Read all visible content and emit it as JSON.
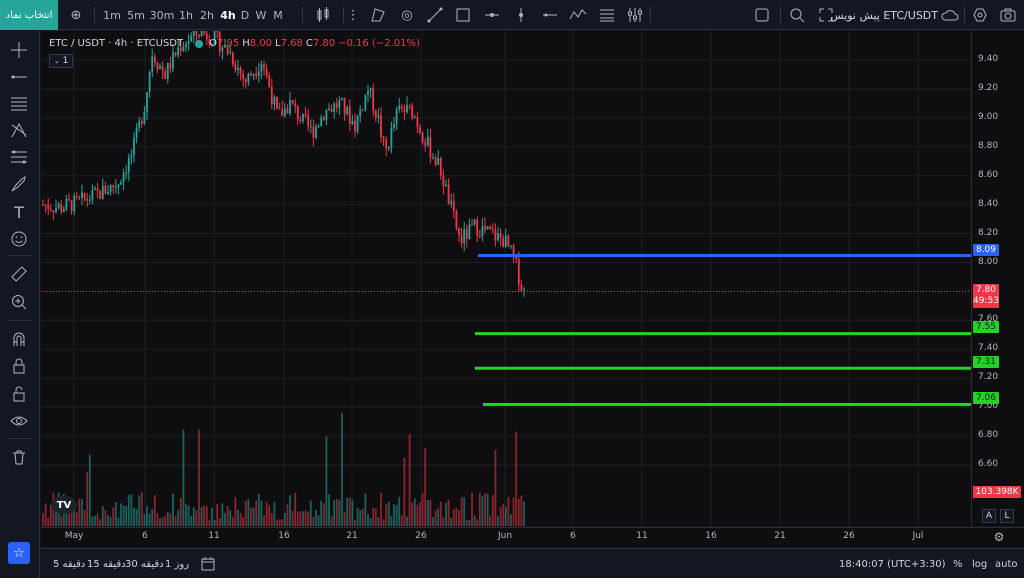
{
  "topbar": {
    "symbol_button": "انتخاب نماد",
    "intervals": [
      "1m",
      "5m",
      "30m",
      "1h",
      "2h",
      "4h",
      "D",
      "W",
      "M"
    ],
    "active_interval": "4h",
    "symbol_name": "پیش نویس ETC/USDT"
  },
  "legend": {
    "title": "ETC / USDT · 4h · ETCUSDT",
    "o_label": "O",
    "o_value": "7.95",
    "h_label": "H",
    "h_value": "8.00",
    "l_label": "L",
    "l_value": "7.68",
    "c_label": "C",
    "c_value": "7.80",
    "change": "−0.16 (−2.01%)",
    "indicator_count": "1"
  },
  "price_scale": {
    "labels": [
      "9.40",
      "9.20",
      "9.00",
      "8.80",
      "8.60",
      "8.40",
      "8.20",
      "8.00",
      "7.60",
      "7.40",
      "7.20",
      "7.00",
      "6.80",
      "6.60"
    ],
    "current_price": "7.80",
    "countdown": "49:53",
    "volume_value": "103.398K"
  },
  "horizontal_lines": [
    {
      "price": "8.09",
      "color": "#2962ff"
    },
    {
      "price": "7.55",
      "color": "#22d422"
    },
    {
      "price": "7.31",
      "color": "#22d422"
    },
    {
      "price": "7.06",
      "color": "#22d422"
    }
  ],
  "time_scale": {
    "labels": [
      "May",
      "6",
      "11",
      "16",
      "21",
      "26",
      "Jun",
      "6",
      "11",
      "16",
      "21",
      "26",
      "Jul"
    ]
  },
  "scale_buttons": {
    "auto": "A",
    "log": "L"
  },
  "bottombar": {
    "ranges": [
      "5 دقیقه",
      "15 دقیقه",
      "30 دقیقه",
      "1 روز"
    ],
    "clock": "18:40:07 (UTC+3:30)",
    "percent": "%",
    "log": "log",
    "auto": "auto"
  },
  "colors": {
    "up": "#26a69a",
    "down": "#f23645",
    "accent": "#2962ff"
  }
}
